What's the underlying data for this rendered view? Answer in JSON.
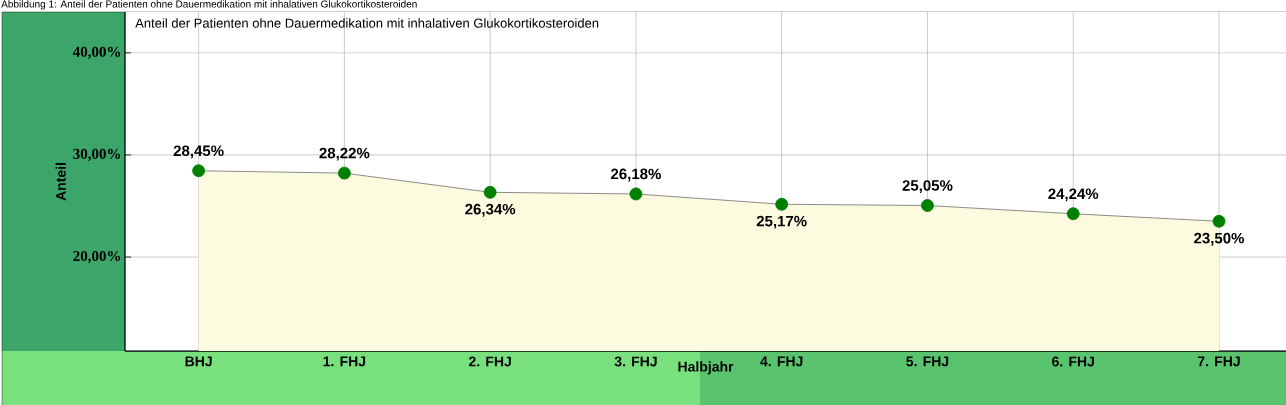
{
  "chart_data": {
    "type": "area",
    "title": "Anteil der Patienten ohne Dauermedikation mit inhalativen Glukokortikosteroiden",
    "annotations": [
      "Abbildung 1: Anteil der Patienten ohne Dauermedikation mit inhalativen Glukokortikosteroiden"
    ],
    "xlabel": "Halbjahr",
    "ylabel": "Anteil",
    "categories": [
      "BHJ",
      "1. FHJ",
      "2. FHJ",
      "3. FHJ",
      "4. FHJ",
      "5. FHJ",
      "6. FHJ",
      "7. FHJ"
    ],
    "series": [
      {
        "color": "#fcfbe0",
        "values": [
          28.45,
          28.22,
          26.34,
          26.18,
          25.17,
          25.05,
          24.24,
          23.5
        ],
        "value_labels": [
          "28,45%",
          "28,22%",
          "26,34%",
          "26,18%",
          "25,17%",
          "25,05%",
          "24,24%",
          "23,50%"
        ]
      }
    ],
    "ylim": [
      10.8,
      44
    ],
    "yticks": [
      {
        "value": 20,
        "label": "20,00%"
      },
      {
        "value": 30,
        "label": "30,00%"
      },
      {
        "value": 40,
        "label": "40,00%"
      }
    ],
    "grid": true,
    "marker": "circle"
  }
}
